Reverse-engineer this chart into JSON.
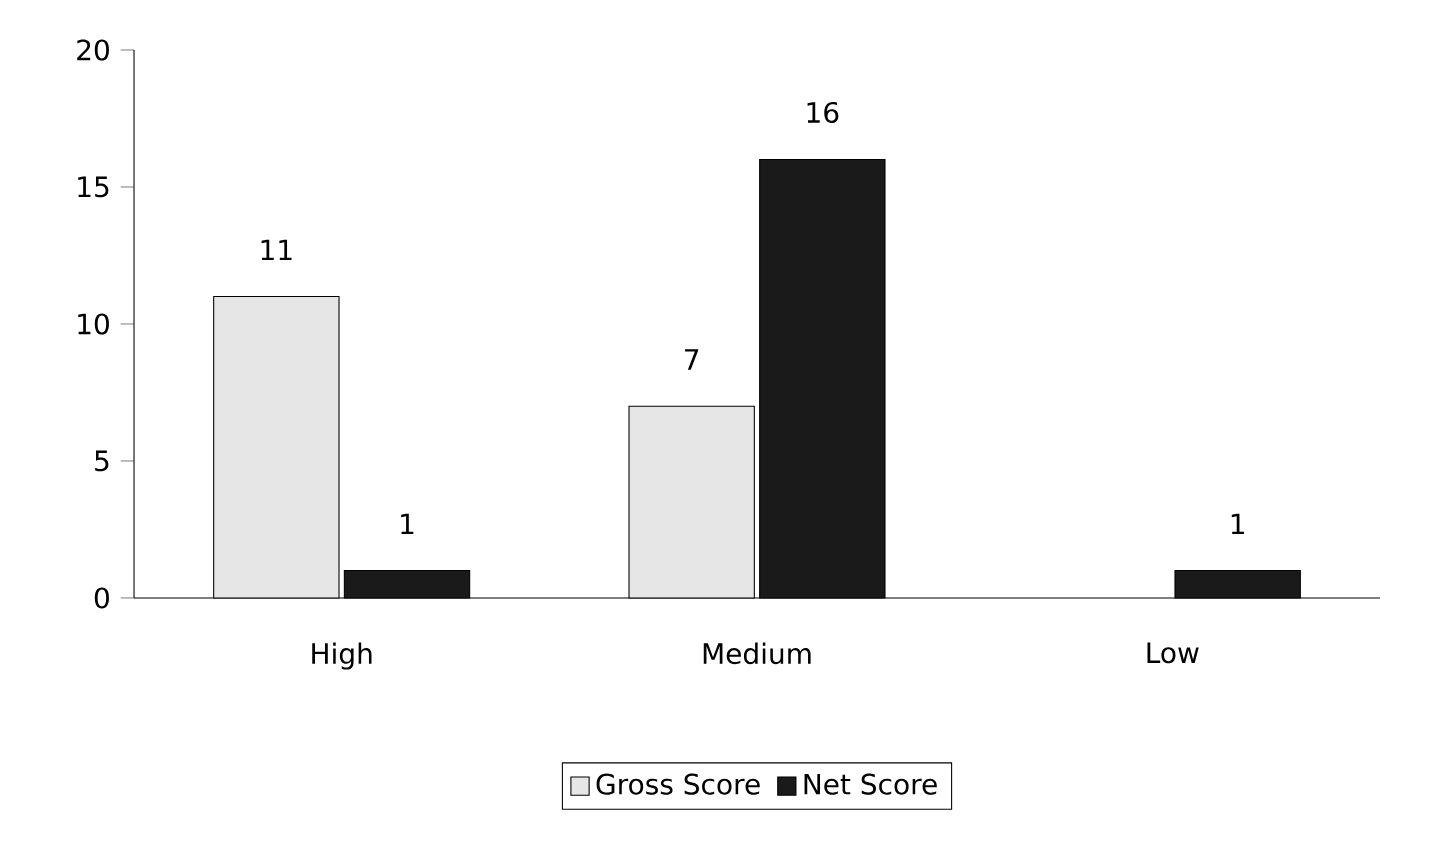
{
  "chart_data": {
    "type": "bar",
    "categories": [
      "High",
      "Medium",
      "Low"
    ],
    "series": [
      {
        "name": "Gross Score",
        "color": "#e6e6e6",
        "values": [
          11,
          7,
          null
        ]
      },
      {
        "name": "Net Score",
        "color": "#1a1a1a",
        "values": [
          1,
          16,
          1
        ]
      }
    ],
    "ylim": [
      0,
      20
    ],
    "yticks": [
      0,
      5,
      10,
      15,
      20
    ],
    "grid": false,
    "legend": "bottom",
    "data_labels": true
  }
}
